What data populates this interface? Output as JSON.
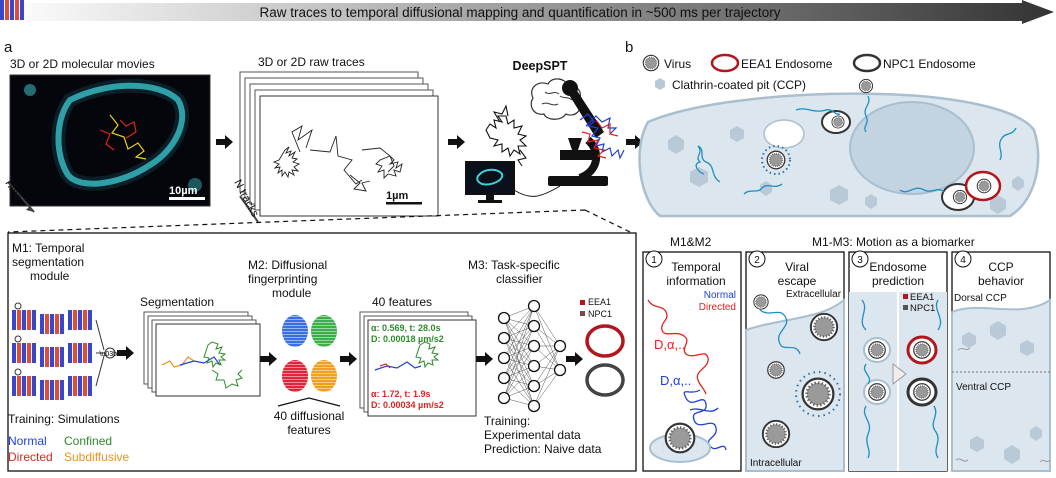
{
  "banner": {
    "text": "Raw traces to temporal diffusional mapping and quantification in ~500 ms per trajectory"
  },
  "panel_a": {
    "letter": "a",
    "movies_title": "3D or 2D molecular movies",
    "time_label": "Time",
    "scale_10um": "10µm",
    "traces_title": "3D or 2D raw traces",
    "ntracks_label": "N tracks",
    "scale_1um": "1µm",
    "deepspt": "DeepSPT"
  },
  "panel_b": {
    "letter": "b",
    "legend": {
      "virus": "Virus",
      "eea1": "EEA1 Endosome",
      "npc1": "NPC1 Endosome",
      "ccp": "Clathrin-coated pit (CCP)"
    }
  },
  "modules": {
    "m1_line1": "M1: Temporal",
    "m1_line2": "segmentation",
    "m1_line3": "module",
    "training_sim": "Training: Simulations",
    "seg_title": "Segmentation",
    "m2_line1": "M2: Diffusional",
    "m2_line2": "fingerprinting",
    "m2_line3": "module",
    "diff_features_1": "40 diffusional",
    "diff_features_2": "features",
    "features_title": "40 features",
    "feat_green_1": "α: 0.569, t: 28.0s",
    "feat_green_2": "D: 0.00018 µm/s2",
    "feat_red_1": "α: 1.72, t: 1.9s",
    "feat_red_2": "D: 0.00034 µm/s2",
    "m3_line1": "M3: Task-specific",
    "m3_line2": "classifier",
    "eea1": "EEA1",
    "npc1": "NPC1",
    "training_exp_1": "Training:",
    "training_exp_2": "Experimental data",
    "prediction": "Prediction: Naive data",
    "legend_normal": "Normal",
    "legend_confined": "Confined",
    "legend_directed": "Directed",
    "legend_subdiffusive": "Subdiffusive"
  },
  "biomarker": {
    "m1m2": "M1&M2",
    "title": "M1-M3: Motion as a biomarker",
    "p1": {
      "num": "1",
      "line1": "Temporal",
      "line2": "information",
      "normal": "Normal",
      "directed": "Directed",
      "d_red": "D,α,..",
      "d_blue": "D,α,.."
    },
    "p2": {
      "num": "2",
      "line1": "Viral",
      "line2": "escape",
      "extra": "Extracellular",
      "intra": "Intracellular"
    },
    "p3": {
      "num": "3",
      "line1": "Endosome",
      "line2": "prediction",
      "eea1": "EEA1",
      "npc1": "NPC1"
    },
    "p4": {
      "num": "4",
      "line1": "CCP",
      "line2": "behavior",
      "dorsal": "Dorsal CCP",
      "ventral": "Ventral CCP"
    }
  },
  "colors": {
    "normal": "#1f3fd8",
    "directed": "#e0241e",
    "confined": "#2e8b2a",
    "subdiffusive": "#e8941a",
    "cyan": "#3fd1d8",
    "eea1": "#b3151c",
    "npc1": "#333333",
    "cell": "#dce6ee",
    "cellEdge": "#a9bfd0"
  }
}
